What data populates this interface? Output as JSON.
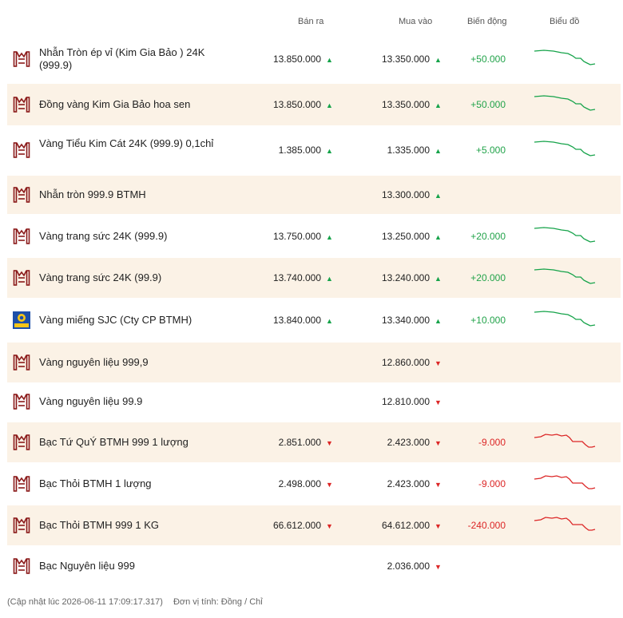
{
  "header": {
    "sell": "Bán ra",
    "buy": "Mua vào",
    "change": "Biến động",
    "chart": "Biểu đồ"
  },
  "colors": {
    "up": "#16a34a",
    "down": "#dc2626",
    "alt_row": "#fbf2e6",
    "logo": "#8b1a1a"
  },
  "rows": [
    {
      "name": "Nhẫn Tròn ép vỉ (Kim Gia Bảo ) 24K (999.9)",
      "logo": "btmh-logo-icon",
      "sell": "13.850.000",
      "sell_dir": "up",
      "buy": "13.350.000",
      "buy_dir": "up",
      "change": "+50.000",
      "trend": "up"
    },
    {
      "name": "Đồng vàng Kim Gia Bảo hoa sen",
      "logo": "btmh-logo-icon",
      "sell": "13.850.000",
      "sell_dir": "up",
      "buy": "13.350.000",
      "buy_dir": "up",
      "change": "+50.000",
      "trend": "up"
    },
    {
      "name": "Vàng Tiểu Kim Cát 24K (999.9) 0,1chỉ",
      "logo": "btmh-logo-icon",
      "sell": "1.385.000",
      "sell_dir": "up",
      "buy": "1.335.000",
      "buy_dir": "up",
      "change": "+5.000",
      "trend": "up"
    },
    {
      "name": "Nhẫn tròn 999.9 BTMH",
      "logo": "btmh-logo-icon",
      "sell": "",
      "sell_dir": "",
      "buy": "13.300.000",
      "buy_dir": "up",
      "change": "",
      "trend": ""
    },
    {
      "name": "Vàng trang sức 24K (999.9)",
      "logo": "btmh-logo-icon",
      "sell": "13.750.000",
      "sell_dir": "up",
      "buy": "13.250.000",
      "buy_dir": "up",
      "change": "+20.000",
      "trend": "up"
    },
    {
      "name": "Vàng trang sức 24K (99.9)",
      "logo": "btmh-logo-icon",
      "sell": "13.740.000",
      "sell_dir": "up",
      "buy": "13.240.000",
      "buy_dir": "up",
      "change": "+20.000",
      "trend": "up"
    },
    {
      "name": "Vàng miếng SJC (Cty CP BTMH)",
      "logo": "sjc-logo-icon",
      "sell": "13.840.000",
      "sell_dir": "up",
      "buy": "13.340.000",
      "buy_dir": "up",
      "change": "+10.000",
      "trend": "up"
    },
    {
      "name": "Vàng nguyên liệu 999,9",
      "logo": "btmh-logo-icon",
      "sell": "",
      "sell_dir": "",
      "buy": "12.860.000",
      "buy_dir": "down",
      "change": "",
      "trend": ""
    },
    {
      "name": "Vàng nguyên liệu 99.9",
      "logo": "btmh-logo-icon",
      "sell": "",
      "sell_dir": "",
      "buy": "12.810.000",
      "buy_dir": "down",
      "change": "",
      "trend": ""
    },
    {
      "name": "Bạc Tứ QuÝ BTMH 999 1 lượng",
      "logo": "btmh-logo-icon",
      "sell": "2.851.000",
      "sell_dir": "down",
      "buy": "2.423.000",
      "buy_dir": "down",
      "change": "-9.000",
      "trend": "down"
    },
    {
      "name": "Bạc Thỏi BTMH 1 lượng",
      "logo": "btmh-logo-icon",
      "sell": "2.498.000",
      "sell_dir": "down",
      "buy": "2.423.000",
      "buy_dir": "down",
      "change": "-9.000",
      "trend": "down"
    },
    {
      "name": "Bạc Thỏi BTMH 999 1 KG",
      "logo": "btmh-logo-icon",
      "sell": "66.612.000",
      "sell_dir": "down",
      "buy": "64.612.000",
      "buy_dir": "down",
      "change": "-240.000",
      "trend": "down"
    },
    {
      "name": "Bạc Nguyên liệu 999",
      "logo": "btmh-logo-icon",
      "sell": "",
      "sell_dir": "",
      "buy": "2.036.000",
      "buy_dir": "down",
      "change": "",
      "trend": ""
    }
  ],
  "footer": {
    "updated": "(Cập nhật lúc 2026-06-11 17:09:17.317)",
    "unit": "Đơn vị tính: Đồng / Chỉ"
  }
}
